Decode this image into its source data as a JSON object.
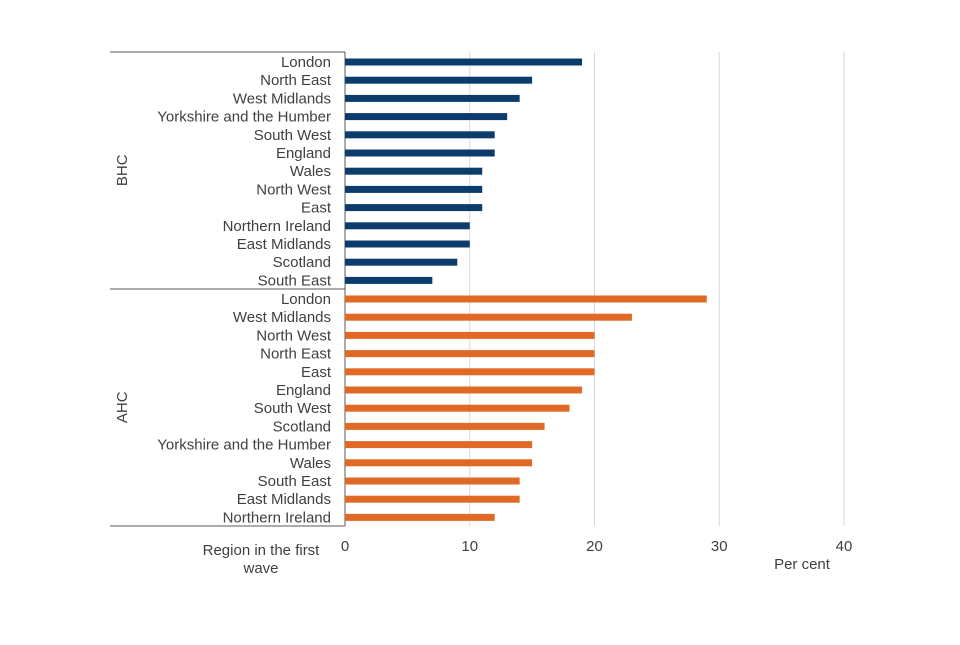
{
  "chart_data": {
    "type": "bar",
    "orientation": "horizontal",
    "xlabel": "Per cent",
    "ylabel": "Region in the first wave",
    "xlim": [
      0,
      40
    ],
    "xticks": [
      0,
      10,
      20,
      30,
      40
    ],
    "grid": "vertical",
    "legend": "none",
    "groups": [
      {
        "name": "BHC",
        "color": "#0b3c6b",
        "categories": [
          "London",
          "North East",
          "West Midlands",
          "Yorkshire and the Humber",
          "South West",
          "England",
          "Wales",
          "North West",
          "East",
          "Northern Ireland",
          "East Midlands",
          "Scotland",
          "South East"
        ],
        "values": [
          19,
          15,
          14,
          13,
          12,
          12,
          11,
          11,
          11,
          10,
          10,
          9,
          7
        ]
      },
      {
        "name": "AHC",
        "color": "#e06a25",
        "categories": [
          "London",
          "West Midlands",
          "North West",
          "North East",
          "East",
          "England",
          "South West",
          "Scotland",
          "Yorkshire and the Humber",
          "Wales",
          "South East",
          "East Midlands",
          "Northern Ireland"
        ],
        "values": [
          29,
          23,
          20,
          20,
          20,
          19,
          18,
          16,
          15,
          15,
          14,
          14,
          12
        ]
      }
    ]
  }
}
